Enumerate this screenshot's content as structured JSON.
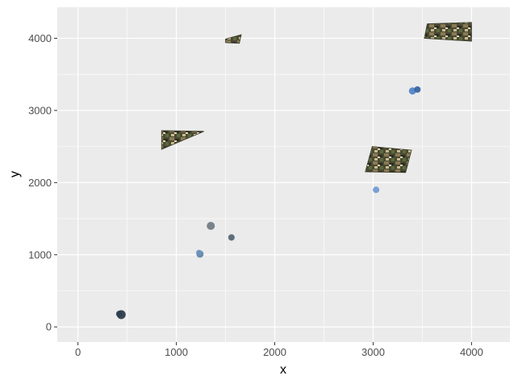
{
  "chart_data": {
    "type": "scatter",
    "title": "",
    "xlabel": "x",
    "ylabel": "y",
    "xlim": [
      -210,
      4390
    ],
    "ylim": [
      -210,
      4430
    ],
    "x_ticks": [
      0,
      1000,
      2000,
      3000,
      4000
    ],
    "y_ticks": [
      0,
      1000,
      2000,
      3000,
      4000
    ],
    "x_tick_labels": [
      "0",
      "1000",
      "2000",
      "3000",
      "4000"
    ],
    "y_tick_labels": [
      "0",
      "1000",
      "2000",
      "3000",
      "4000"
    ],
    "grid": true,
    "legend": "none",
    "colors": {
      "panel": "#ebebeb",
      "grid": "#ffffff",
      "tick": "#333333"
    },
    "points": [
      {
        "x": 440,
        "y": 170,
        "color": "#263545",
        "r": 5.5
      },
      {
        "x": 420,
        "y": 180,
        "color": "#2e4052",
        "r": 4
      },
      {
        "x": 1240,
        "y": 1010,
        "color": "#5a7fa8",
        "r": 4.5
      },
      {
        "x": 1230,
        "y": 1030,
        "color": "#6e93bf",
        "r": 3.5
      },
      {
        "x": 1350,
        "y": 1400,
        "color": "#6f7880",
        "r": 5
      },
      {
        "x": 1560,
        "y": 1240,
        "color": "#4f6170",
        "r": 4
      },
      {
        "x": 3030,
        "y": 1900,
        "color": "#6d98d1",
        "r": 4
      },
      {
        "x": 3400,
        "y": 3270,
        "color": "#4c7fc8",
        "r": 4.5
      },
      {
        "x": 3450,
        "y": 3290,
        "color": "#2f5f9e",
        "r": 4
      }
    ],
    "image_patches": [
      {
        "corners": [
          [
            1500,
            3990
          ],
          [
            1660,
            4050
          ],
          [
            1640,
            3930
          ],
          [
            1500,
            3940
          ]
        ],
        "x_min": 1500,
        "x_max": 1660,
        "y_min": 3930,
        "y_max": 4050
      },
      {
        "corners": [
          [
            3550,
            4200
          ],
          [
            4000,
            4220
          ],
          [
            4000,
            3960
          ],
          [
            3520,
            4000
          ]
        ],
        "x_min": 3520,
        "x_max": 4000,
        "y_min": 3960,
        "y_max": 4220
      },
      {
        "corners": [
          [
            850,
            2720
          ],
          [
            1280,
            2710
          ],
          [
            1230,
            2680
          ],
          [
            850,
            2460
          ]
        ],
        "x_min": 850,
        "x_max": 1280,
        "y_min": 2460,
        "y_max": 2720
      },
      {
        "corners": [
          [
            2990,
            2500
          ],
          [
            3390,
            2450
          ],
          [
            3330,
            2140
          ],
          [
            2920,
            2150
          ]
        ],
        "x_min": 2920,
        "x_max": 3390,
        "y_min": 2140,
        "y_max": 2500
      }
    ]
  }
}
